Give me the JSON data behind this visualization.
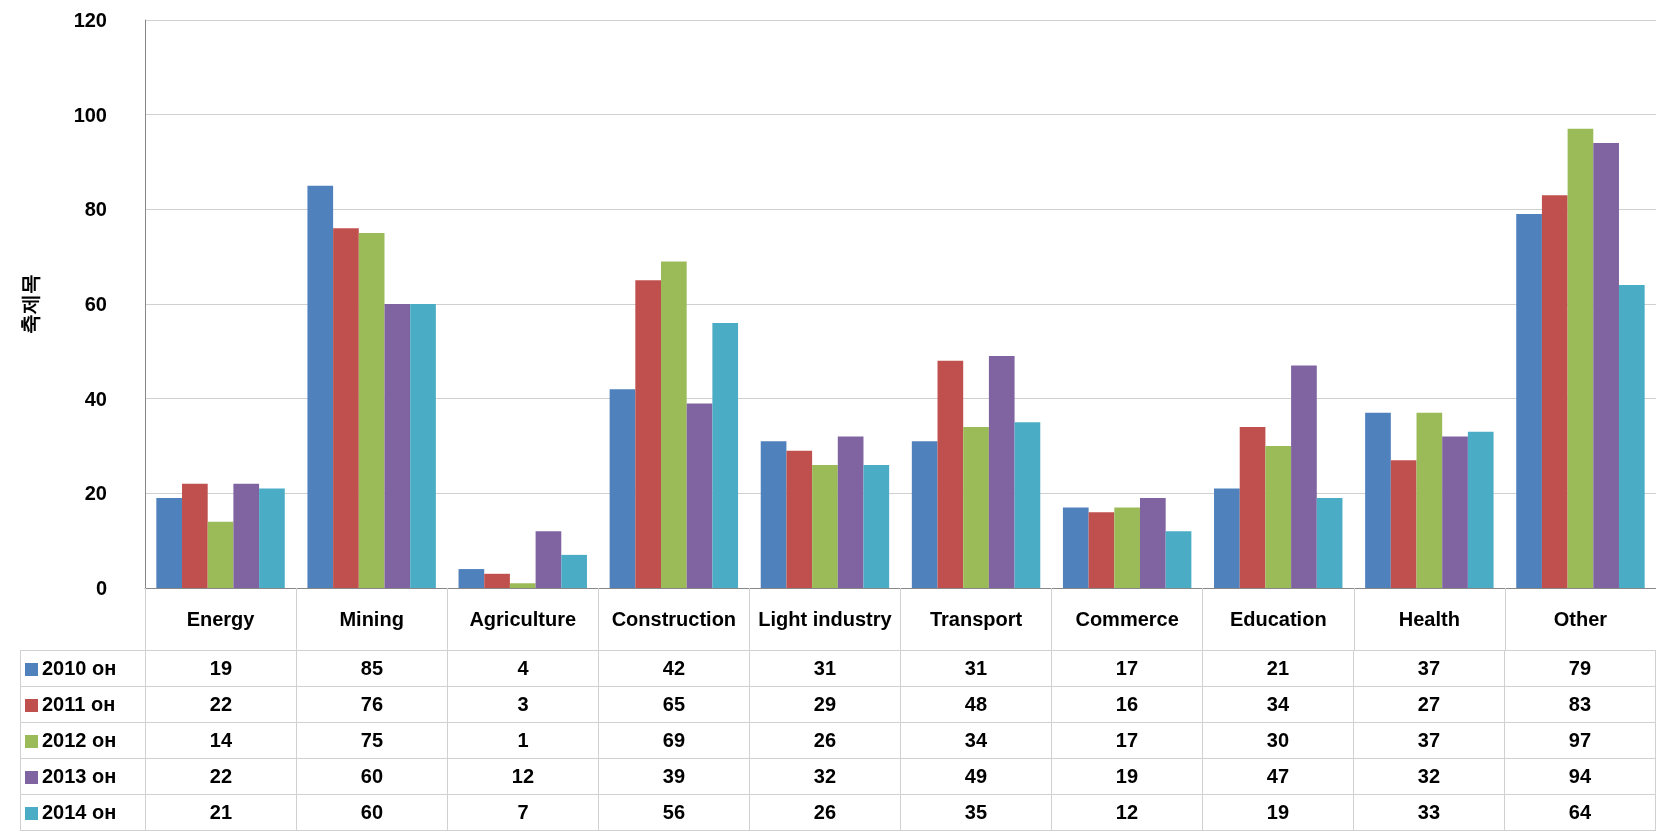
{
  "chart_data": {
    "type": "bar",
    "ylabel": "축제목",
    "categories": [
      "Energy",
      "Mining",
      "Agriculture",
      "Construction",
      "Light industry",
      "Transport",
      "Commerce",
      "Education",
      "Health",
      "Other"
    ],
    "series": [
      {
        "name": "2010 он",
        "color": "#4f81bd",
        "values": [
          19,
          85,
          4,
          42,
          31,
          31,
          17,
          21,
          37,
          79
        ]
      },
      {
        "name": "2011 он",
        "color": "#c0504d",
        "values": [
          22,
          76,
          3,
          65,
          29,
          48,
          16,
          34,
          27,
          83
        ]
      },
      {
        "name": "2012 он",
        "color": "#9bbb59",
        "values": [
          14,
          75,
          1,
          69,
          26,
          34,
          17,
          30,
          37,
          97
        ]
      },
      {
        "name": "2013 он",
        "color": "#8064a2",
        "values": [
          22,
          60,
          12,
          39,
          32,
          49,
          19,
          47,
          32,
          94
        ]
      },
      {
        "name": "2014 он",
        "color": "#4bacc6",
        "values": [
          21,
          60,
          7,
          56,
          26,
          35,
          12,
          19,
          33,
          64
        ]
      }
    ],
    "ylim": [
      0,
      120
    ],
    "yticks": [
      0,
      20,
      40,
      60,
      80,
      100,
      120
    ],
    "grid": "y",
    "legend": "bottom left",
    "data_labels": true
  }
}
